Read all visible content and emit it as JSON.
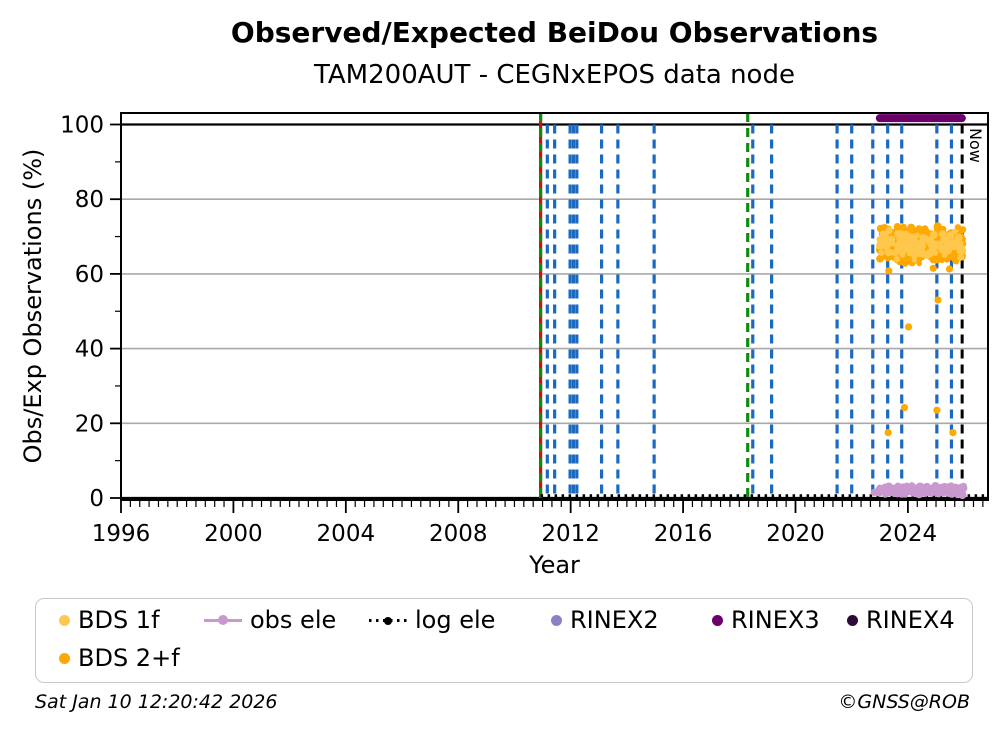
{
  "header": {
    "title": "Observed/Expected BeiDou Observations",
    "subtitle": "TAM200AUT - CEGNxEPOS data node"
  },
  "footer": {
    "timestamp": "Sat Jan 10 12:20:42 2026",
    "copyright": "©GNSS@ROB"
  },
  "chart_data": {
    "type": "scatter",
    "title": "Observed/Expected BeiDou Observations",
    "subtitle": "TAM200AUT - CEGNxEPOS data node",
    "xlabel": "Year",
    "ylabel": "Obs/Exp Observations (%)",
    "xlim": [
      1996,
      2026.85
    ],
    "ylim": [
      -0.5,
      103
    ],
    "xticks": [
      1996,
      2000,
      2004,
      2008,
      2012,
      2016,
      2020,
      2024
    ],
    "yticks": [
      0,
      20,
      40,
      60,
      80,
      100
    ],
    "x_minor_step": 0.3333,
    "y_minor_step": 10,
    "gridlines_y": [
      20,
      40,
      60,
      80
    ],
    "reference_lines_y": [
      0,
      100
    ],
    "grid": "horizontal only",
    "legend_position": "below, 2 rows, rounded box",
    "colors": {
      "event_blue": "#1b6ac0",
      "event_green": "#0e8c0e",
      "event_red": "#cc1111",
      "grid_gray": "#a9a9a9",
      "now_black": "#000000",
      "bds1f": "#ffc84d",
      "bds2f": "#ffa800",
      "obs_ele": "#c898ce",
      "log_ele": "#000000",
      "rinex2": "#8e7fc7",
      "rinex3": "#6a006a",
      "rinex4": "#2e0a3c"
    },
    "event_lines": {
      "blue": [
        2011.17,
        2011.43,
        2011.98,
        2012.1,
        2012.22,
        2013.1,
        2013.68,
        2014.97,
        2018.48,
        2019.15,
        2021.48,
        2022.0,
        2022.75,
        2023.28,
        2023.78,
        2025.03,
        2025.55
      ],
      "green": [
        2010.93,
        2018.3
      ],
      "red": [
        2010.93
      ]
    },
    "now_line": {
      "year": 2025.93,
      "label": "Now"
    },
    "series": [
      {
        "name": "BDS 1f",
        "color": "#ffc84d",
        "type": "scatter-cluster",
        "cluster": {
          "x_range": [
            2023.0,
            2025.98
          ],
          "y_range": [
            63.5,
            72.5
          ],
          "n": 130
        }
      },
      {
        "name": "BDS 2+f",
        "color": "#ffa800",
        "type": "scatter-cluster",
        "cluster": {
          "x_range": [
            2023.0,
            2025.98
          ],
          "y_range": [
            62.5,
            73.2
          ],
          "n": 400
        },
        "outliers": [
          [
            2023.3,
            17.5
          ],
          [
            2025.6,
            17.5
          ],
          [
            2023.88,
            24.2
          ],
          [
            2025.03,
            23.5
          ],
          [
            2024.02,
            45.8
          ],
          [
            2025.07,
            53.0
          ],
          [
            2024.9,
            61.5
          ],
          [
            2025.48,
            61.3
          ],
          [
            2023.32,
            60.8
          ]
        ]
      },
      {
        "name": "obs ele",
        "color": "#c898ce",
        "type": "scatter-cluster",
        "cluster": {
          "x_range": [
            2022.97,
            2026.0
          ],
          "y_range": [
            0.7,
            3.5
          ],
          "n": 280
        },
        "outliers": [
          [
            2022.8,
            1.5
          ]
        ]
      },
      {
        "name": "log ele",
        "color": "#000000",
        "type": "dotted-line",
        "x_range": [
          2010.93,
          2026.85
        ],
        "y": 0.6
      },
      {
        "name": "RINEX2",
        "color": "#8e7fc7",
        "type": "scatter",
        "points": []
      },
      {
        "name": "RINEX3",
        "color": "#6a006a",
        "type": "thick-line",
        "x_range": [
          2023.0,
          2025.92
        ],
        "y": 101.7
      },
      {
        "name": "RINEX4",
        "color": "#2e0a3c",
        "type": "scatter",
        "points": []
      }
    ],
    "legend": {
      "items": [
        {
          "label": "BDS 1f",
          "marker": "dot",
          "color": "#ffc84d",
          "row": 1
        },
        {
          "label": "obs ele",
          "marker": "line-dot",
          "color": "#c898ce",
          "row": 1
        },
        {
          "label": "log ele",
          "marker": "dotted-line-dot",
          "color": "#000000",
          "row": 1
        },
        {
          "label": "RINEX2",
          "marker": "dot",
          "color": "#8e7fc7",
          "row": 1
        },
        {
          "label": "RINEX3",
          "marker": "dot",
          "color": "#6a006a",
          "row": 1
        },
        {
          "label": "RINEX4",
          "marker": "dot",
          "color": "#2e0a3c",
          "row": 1
        },
        {
          "label": "BDS 2+f",
          "marker": "dot",
          "color": "#ffa800",
          "row": 2
        }
      ]
    }
  }
}
